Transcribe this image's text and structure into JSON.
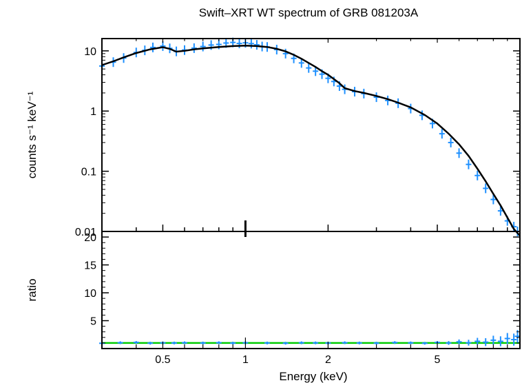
{
  "chart_data": [
    {
      "type": "scatter",
      "title": "Swift–XRT WT spectrum of GRB 081203A",
      "xlabel": "Energy (keV)",
      "ylabel": "counts s⁻¹ keV⁻¹",
      "xscale": "log",
      "yscale": "log",
      "xlim": [
        0.3,
        10
      ],
      "ylim": [
        0.01,
        16
      ],
      "xticks": [
        {
          "value": 0.5,
          "label": "0.5"
        },
        {
          "value": 1,
          "label": "1"
        },
        {
          "value": 2,
          "label": "2"
        },
        {
          "value": 5,
          "label": "5"
        }
      ],
      "yticks": [
        {
          "value": 10,
          "label": "10"
        },
        {
          "value": 1,
          "label": "1"
        },
        {
          "value": 0.1,
          "label": "0.1"
        },
        {
          "value": 0.01,
          "label": "0.01"
        }
      ],
      "colors": {
        "data": "#1e90ff",
        "model": "#000000"
      },
      "series": [
        {
          "role": "data",
          "x": [
            0.3,
            0.33,
            0.36,
            0.4,
            0.43,
            0.46,
            0.5,
            0.53,
            0.56,
            0.6,
            0.65,
            0.7,
            0.75,
            0.8,
            0.85,
            0.9,
            0.95,
            1.0,
            1.05,
            1.1,
            1.15,
            1.2,
            1.3,
            1.4,
            1.5,
            1.6,
            1.7,
            1.8,
            1.9,
            2.0,
            2.1,
            2.2,
            2.3,
            2.5,
            2.7,
            3.0,
            3.3,
            3.6,
            4.0,
            4.4,
            4.8,
            5.2,
            5.6,
            6.0,
            6.5,
            7.0,
            7.5,
            8.0,
            8.5,
            9.0,
            9.5,
            9.8
          ],
          "y": [
            5.6,
            6.5,
            7.6,
            9.4,
            10.2,
            11.4,
            12.0,
            11.0,
            9.8,
            10.3,
            11.1,
            11.8,
            12.5,
            12.8,
            13.5,
            13.8,
            13.3,
            13.6,
            13.2,
            12.6,
            11.8,
            11.6,
            10.5,
            9.0,
            7.5,
            6.3,
            5.2,
            4.6,
            4.1,
            3.5,
            3.1,
            2.6,
            2.3,
            2.1,
            1.95,
            1.7,
            1.5,
            1.35,
            1.1,
            0.85,
            0.62,
            0.42,
            0.3,
            0.2,
            0.13,
            0.085,
            0.052,
            0.034,
            0.022,
            0.015,
            0.012,
            0.01
          ]
        },
        {
          "role": "model",
          "x": [
            0.3,
            0.33,
            0.36,
            0.4,
            0.45,
            0.5,
            0.53,
            0.56,
            0.6,
            0.65,
            0.7,
            0.8,
            0.9,
            1.0,
            1.1,
            1.2,
            1.3,
            1.4,
            1.5,
            1.6,
            1.7,
            1.8,
            1.9,
            2.0,
            2.1,
            2.2,
            2.3,
            2.5,
            2.7,
            3.0,
            3.3,
            3.6,
            4.0,
            4.5,
            5.0,
            5.5,
            6.0,
            6.5,
            7.0,
            7.5,
            8.0,
            8.5,
            9.0,
            9.5,
            10.0
          ],
          "y": [
            5.8,
            6.7,
            7.8,
            9.2,
            10.6,
            11.5,
            10.8,
            9.7,
            10.0,
            10.6,
            11.0,
            11.6,
            12.0,
            12.2,
            12.0,
            11.6,
            10.8,
            9.8,
            8.6,
            7.4,
            6.3,
            5.4,
            4.6,
            4.0,
            3.4,
            2.9,
            2.4,
            2.15,
            2.0,
            1.78,
            1.58,
            1.38,
            1.15,
            0.86,
            0.62,
            0.42,
            0.28,
            0.18,
            0.11,
            0.068,
            0.042,
            0.027,
            0.017,
            0.011,
            0.0085
          ]
        }
      ]
    },
    {
      "type": "scatter",
      "ylabel": "ratio",
      "xscale": "log",
      "xlim": [
        0.3,
        10
      ],
      "ylim": [
        0,
        21
      ],
      "yticks": [
        {
          "value": 5,
          "label": "5"
        },
        {
          "value": 10,
          "label": "10"
        },
        {
          "value": 15,
          "label": "15"
        },
        {
          "value": 20,
          "label": "20"
        }
      ],
      "reference_line": 1,
      "colors": {
        "data": "#1e90ff",
        "reference": "#00cc00"
      },
      "series": [
        {
          "role": "data",
          "x": [
            0.3,
            0.35,
            0.4,
            0.45,
            0.5,
            0.55,
            0.6,
            0.7,
            0.8,
            0.9,
            1.0,
            1.2,
            1.4,
            1.6,
            1.8,
            2.0,
            2.3,
            2.6,
            3.0,
            3.5,
            4.0,
            4.5,
            5.0,
            5.5,
            6.0,
            6.5,
            7.0,
            7.5,
            8.0,
            8.5,
            9.0,
            9.5,
            9.8
          ],
          "y": [
            0.95,
            1.05,
            1.1,
            0.97,
            1.02,
            1.0,
            1.04,
            1.0,
            1.05,
            0.98,
            1.03,
            1.0,
            0.96,
            1.04,
            1.02,
            0.98,
            1.05,
            1.0,
            0.97,
            1.08,
            1.02,
            0.95,
            1.1,
            1.0,
            1.2,
            1.05,
            1.3,
            1.15,
            1.5,
            1.3,
            1.8,
            1.6,
            2.2
          ]
        }
      ]
    }
  ]
}
